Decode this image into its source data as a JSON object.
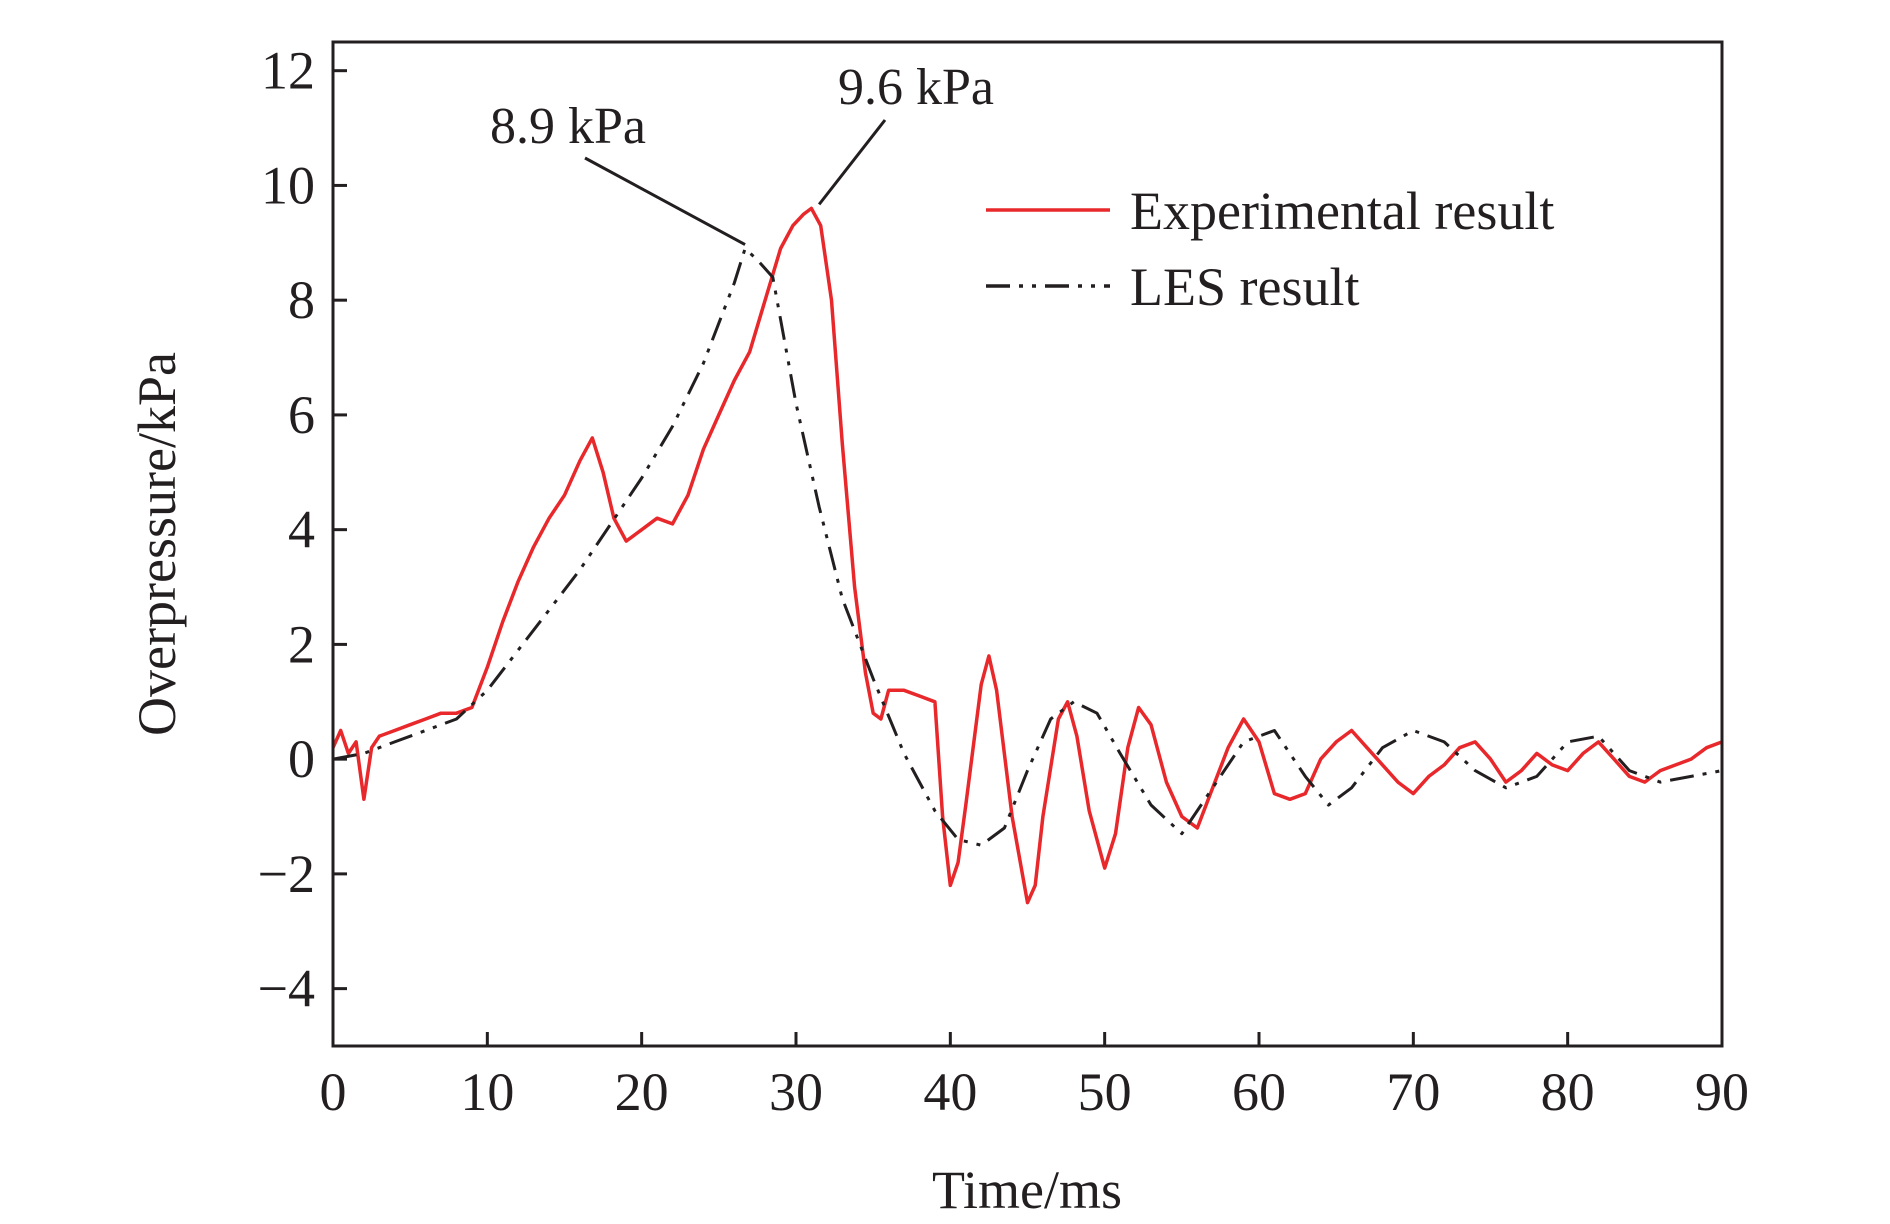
{
  "chart_data": {
    "type": "line",
    "title": "",
    "xlabel": "Time/ms",
    "ylabel": "Overpressure/kPa",
    "xlim": [
      0,
      90
    ],
    "ylim": [
      -5,
      12.5
    ],
    "xticks": [
      0,
      10,
      20,
      30,
      40,
      50,
      60,
      70,
      80,
      90
    ],
    "yticks": [
      -4,
      -2,
      0,
      2,
      4,
      6,
      8,
      10,
      12
    ],
    "xtick_labels": [
      "0",
      "10",
      "20",
      "30",
      "40",
      "50",
      "60",
      "70",
      "80",
      "90"
    ],
    "ytick_labels": [
      "−4",
      "−2",
      "0",
      "2",
      "4",
      "6",
      "8",
      "10",
      "12"
    ],
    "grid": false,
    "legend_position": "top-right",
    "series": [
      {
        "name": "Experimental result",
        "color": "#e8282b",
        "style": "solid",
        "x": [
          0,
          0.5,
          1,
          1.5,
          2,
          2.5,
          3,
          4,
          5,
          6,
          7,
          8,
          9,
          10,
          11,
          12,
          13,
          14,
          15,
          16,
          16.8,
          17.5,
          18.2,
          19,
          20,
          21,
          22,
          23,
          24,
          25,
          26,
          27,
          28,
          29,
          29.8,
          30.5,
          31,
          31.6,
          32.3,
          33,
          33.8,
          34.5,
          35,
          35.5,
          36,
          37,
          38,
          39,
          39.5,
          40,
          40.5,
          41,
          42,
          42.5,
          43,
          44,
          45,
          45.5,
          46,
          47,
          47.6,
          48.2,
          49,
          50,
          50.7,
          51.5,
          52.2,
          53,
          54,
          55,
          56,
          57,
          58,
          59,
          60,
          61,
          62,
          63,
          64,
          65,
          66,
          67,
          68,
          69,
          70,
          71,
          72,
          73,
          74,
          75,
          76,
          77,
          78,
          79,
          80,
          81,
          82,
          83,
          84,
          85,
          86,
          87,
          88,
          89,
          90
        ],
        "y": [
          0.2,
          0.5,
          0.1,
          0.3,
          -0.7,
          0.2,
          0.4,
          0.5,
          0.6,
          0.7,
          0.8,
          0.8,
          0.9,
          1.6,
          2.4,
          3.1,
          3.7,
          4.2,
          4.6,
          5.2,
          5.6,
          5.0,
          4.2,
          3.8,
          4.0,
          4.2,
          4.1,
          4.6,
          5.4,
          6.0,
          6.6,
          7.1,
          8.0,
          8.9,
          9.3,
          9.5,
          9.6,
          9.3,
          8.0,
          5.5,
          3.0,
          1.5,
          0.8,
          0.7,
          1.2,
          1.2,
          1.1,
          1.0,
          -1.0,
          -2.2,
          -1.8,
          -0.8,
          1.3,
          1.8,
          1.2,
          -1.0,
          -2.5,
          -2.2,
          -1.0,
          0.7,
          1.0,
          0.4,
          -0.9,
          -1.9,
          -1.3,
          0.2,
          0.9,
          0.6,
          -0.4,
          -1.0,
          -1.2,
          -0.5,
          0.2,
          0.7,
          0.3,
          -0.6,
          -0.7,
          -0.6,
          0.0,
          0.3,
          0.5,
          0.2,
          -0.1,
          -0.4,
          -0.6,
          -0.3,
          -0.1,
          0.2,
          0.3,
          0.0,
          -0.4,
          -0.2,
          0.1,
          -0.1,
          -0.2,
          0.1,
          0.3,
          0.0,
          -0.3,
          -0.4,
          -0.2,
          -0.1,
          0.0,
          0.2,
          0.3
        ]
      },
      {
        "name": "LES result",
        "color": "#231f20",
        "style": "dash-dot-dot",
        "x": [
          0,
          2,
          4,
          6,
          8,
          10,
          12,
          14,
          16,
          18,
          20,
          22,
          24,
          26,
          26.7,
          27.5,
          28.5,
          30,
          31.5,
          33,
          35,
          37,
          39,
          40.5,
          42,
          43.5,
          45,
          46.5,
          48,
          49.5,
          51,
          53,
          55,
          57,
          59,
          61,
          63,
          64.5,
          66,
          68,
          70,
          72,
          74,
          76,
          78,
          80,
          82,
          84,
          86,
          88,
          90
        ],
        "y": [
          0.0,
          0.1,
          0.3,
          0.5,
          0.7,
          1.2,
          1.9,
          2.6,
          3.3,
          4.1,
          4.9,
          5.8,
          6.9,
          8.3,
          8.9,
          8.7,
          8.4,
          6.2,
          4.4,
          2.8,
          1.4,
          0.1,
          -0.9,
          -1.4,
          -1.5,
          -1.2,
          -0.2,
          0.7,
          1.0,
          0.8,
          0.1,
          -0.8,
          -1.3,
          -0.5,
          0.3,
          0.5,
          -0.3,
          -0.8,
          -0.5,
          0.2,
          0.5,
          0.3,
          -0.2,
          -0.5,
          -0.3,
          0.3,
          0.4,
          -0.2,
          -0.4,
          -0.3,
          -0.2
        ]
      }
    ],
    "annotations": [
      {
        "text": "8.9 kPa",
        "x": 26.7,
        "y": 8.9
      },
      {
        "text": "9.6 kPa",
        "x": 31.5,
        "y": 9.6
      }
    ]
  }
}
